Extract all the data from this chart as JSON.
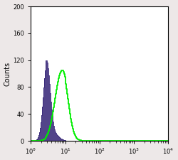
{
  "title": "",
  "xlabel": "",
  "ylabel": "Counts",
  "xlim_log": [
    1.0,
    10000.0
  ],
  "ylim": [
    0,
    200
  ],
  "yticks": [
    0,
    40,
    80,
    120,
    160,
    200
  ],
  "background_color": "#ede8e8",
  "plot_bg": "#ffffff",
  "purple_color": "#3a2a7a",
  "purple_fill_alpha": 0.88,
  "green_color": "#00ee00",
  "green_linewidth": 1.3,
  "purple_peak_log": 0.46,
  "purple_sigma_log": 0.1,
  "purple_peak_height": 120,
  "green_peak_log": 0.88,
  "green_sigma_log": 0.18,
  "green_peak_height": 105,
  "n_bins": 200,
  "figsize": [
    2.5,
    2.25
  ],
  "dpi": 100
}
